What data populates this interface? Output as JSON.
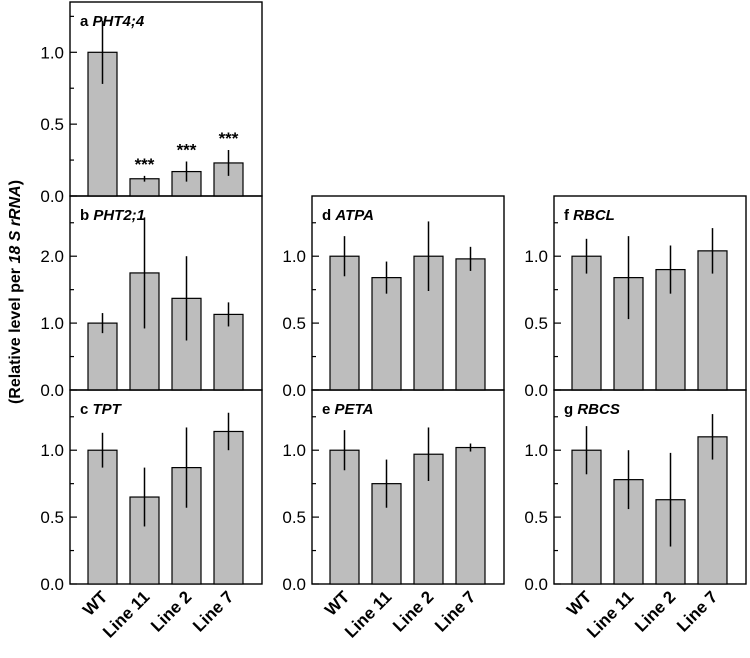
{
  "chart_data": {
    "type": "bar",
    "y_title": {
      "prefix": "(Relative level per ",
      "gene": "18 S rRNA",
      "suffix": ")"
    },
    "categories": [
      "WT",
      "Line 11",
      "Line 2",
      "Line 7"
    ],
    "panels": [
      {
        "letter": "a",
        "gene": "PHT4;4",
        "ylim": [
          0,
          1.35
        ],
        "ticks": [
          "0.0",
          "0.5",
          "1.0"
        ],
        "tick_values": [
          0,
          0.5,
          1.0
        ],
        "values": [
          1.0,
          0.12,
          0.17,
          0.23
        ],
        "errors": [
          0.22,
          0.02,
          0.07,
          0.09
        ],
        "annotations": [
          "",
          "***",
          "***",
          "***"
        ]
      },
      {
        "letter": "b",
        "gene": "PHT2;1",
        "ylim": [
          0,
          2.9
        ],
        "ticks": [
          "0.0",
          "1.0",
          "2.0"
        ],
        "tick_values": [
          0,
          1.0,
          2.0
        ],
        "values": [
          1.0,
          1.75,
          1.37,
          1.13
        ],
        "errors": [
          0.15,
          0.83,
          0.63,
          0.18
        ],
        "annotations": [
          "",
          "",
          "",
          ""
        ]
      },
      {
        "letter": "c",
        "gene": "TPT",
        "ylim": [
          0,
          1.45
        ],
        "ticks": [
          "0.0",
          "0.5",
          "1.0"
        ],
        "tick_values": [
          0,
          0.5,
          1.0
        ],
        "values": [
          1.0,
          0.65,
          0.87,
          1.14
        ],
        "errors": [
          0.13,
          0.22,
          0.3,
          0.14
        ],
        "annotations": [
          "",
          "",
          "",
          ""
        ]
      },
      {
        "letter": "d",
        "gene": "ATPA",
        "ylim": [
          0,
          1.45
        ],
        "ticks": [
          "0.0",
          "0.5",
          "1.0"
        ],
        "tick_values": [
          0,
          0.5,
          1.0
        ],
        "values": [
          1.0,
          0.84,
          1.0,
          0.98
        ],
        "errors": [
          0.15,
          0.12,
          0.26,
          0.09
        ],
        "annotations": [
          "",
          "",
          "",
          ""
        ]
      },
      {
        "letter": "e",
        "gene": "PETA",
        "ylim": [
          0,
          1.45
        ],
        "ticks": [
          "0.0",
          "0.5",
          "1.0"
        ],
        "tick_values": [
          0,
          0.5,
          1.0
        ],
        "values": [
          1.0,
          0.75,
          0.97,
          1.02
        ],
        "errors": [
          0.15,
          0.18,
          0.2,
          0.03
        ],
        "annotations": [
          "",
          "",
          "",
          ""
        ]
      },
      {
        "letter": "f",
        "gene": "RBCL",
        "ylim": [
          0,
          1.45
        ],
        "ticks": [
          "0.0",
          "0.5",
          "1.0"
        ],
        "tick_values": [
          0,
          0.5,
          1.0
        ],
        "values": [
          1.0,
          0.84,
          0.9,
          1.04
        ],
        "errors": [
          0.13,
          0.31,
          0.18,
          0.17
        ],
        "annotations": [
          "",
          "",
          "",
          ""
        ]
      },
      {
        "letter": "g",
        "gene": "RBCS",
        "ylim": [
          0,
          1.45
        ],
        "ticks": [
          "0.0",
          "0.5",
          "1.0"
        ],
        "tick_values": [
          0,
          0.5,
          1.0
        ],
        "values": [
          1.0,
          0.78,
          0.63,
          1.1
        ],
        "errors": [
          0.18,
          0.22,
          0.35,
          0.17
        ],
        "annotations": [
          "",
          "",
          "",
          ""
        ]
      }
    ]
  }
}
